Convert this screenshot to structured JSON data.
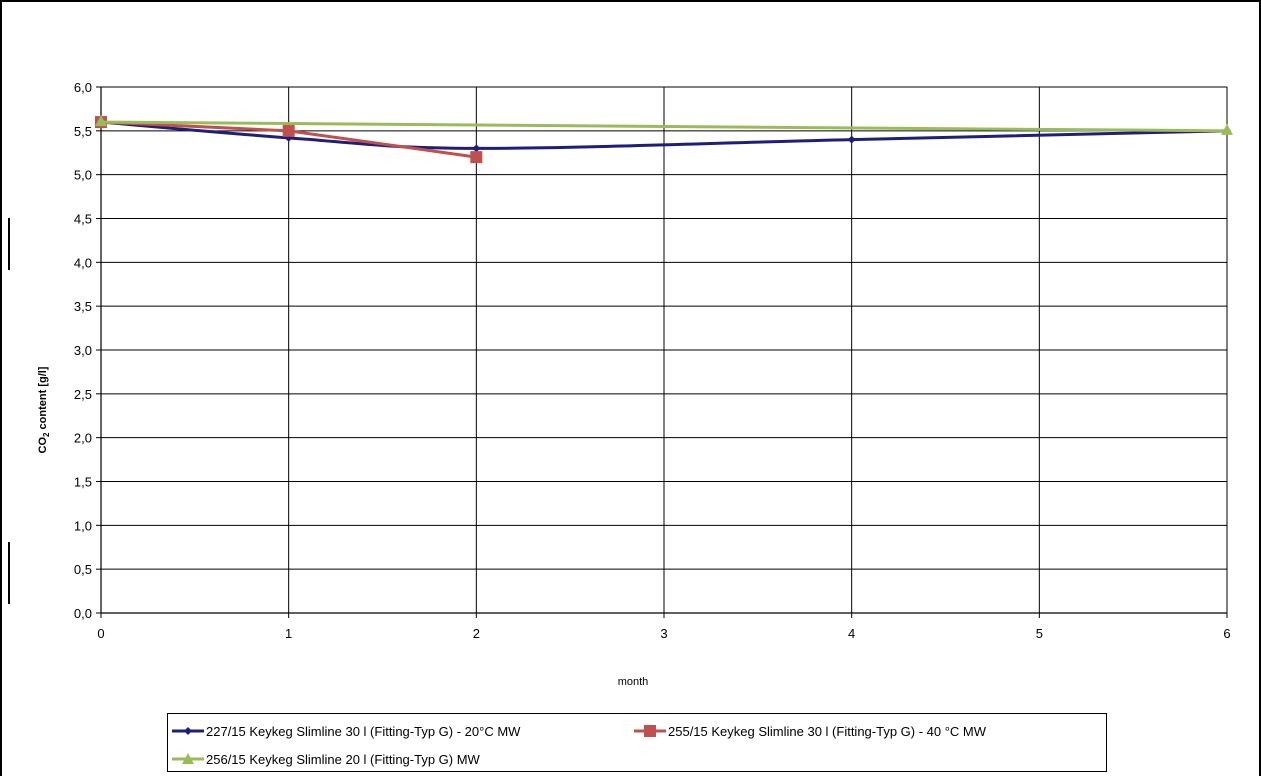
{
  "chart_data": {
    "type": "line",
    "xlabel": "month",
    "ylabel_main": "CO",
    "ylabel_sub": "2",
    "ylabel_rest": " content [g/l]",
    "x_ticks": [
      "0",
      "1",
      "2",
      "3",
      "4",
      "5",
      "6"
    ],
    "y_ticks": [
      "0,0",
      "0,5",
      "1,0",
      "1,5",
      "2,0",
      "2,5",
      "3,0",
      "3,5",
      "4,0",
      "4,5",
      "5,0",
      "5,5",
      "6,0"
    ],
    "xlim": [
      0,
      6
    ],
    "ylim": [
      0,
      6
    ],
    "grid": true,
    "legend_position": "bottom",
    "series": [
      {
        "name": "227/15 Keykeg Slimline 30 l (Fitting-Typ G) - 20°C MW",
        "color": "#1f1f7a",
        "marker": "diamond",
        "x": [
          0,
          1,
          2,
          4,
          6
        ],
        "y": [
          5.6,
          5.42,
          5.3,
          5.4,
          5.5
        ],
        "smooth": true
      },
      {
        "name": "255/15 Keykeg Slimline 30 l (Fitting-Typ G) - 40 °C MW",
        "color": "#c0504d",
        "marker": "square",
        "x": [
          0,
          1,
          2
        ],
        "y": [
          5.6,
          5.5,
          5.2
        ],
        "smooth": false
      },
      {
        "name": "256/15 Keykeg Slimline 20 l (Fitting-Typ G)  MW",
        "color": "#9bbb59",
        "marker": "triangle",
        "x": [
          0,
          6
        ],
        "y": [
          5.6,
          5.5
        ],
        "smooth": false
      }
    ]
  }
}
